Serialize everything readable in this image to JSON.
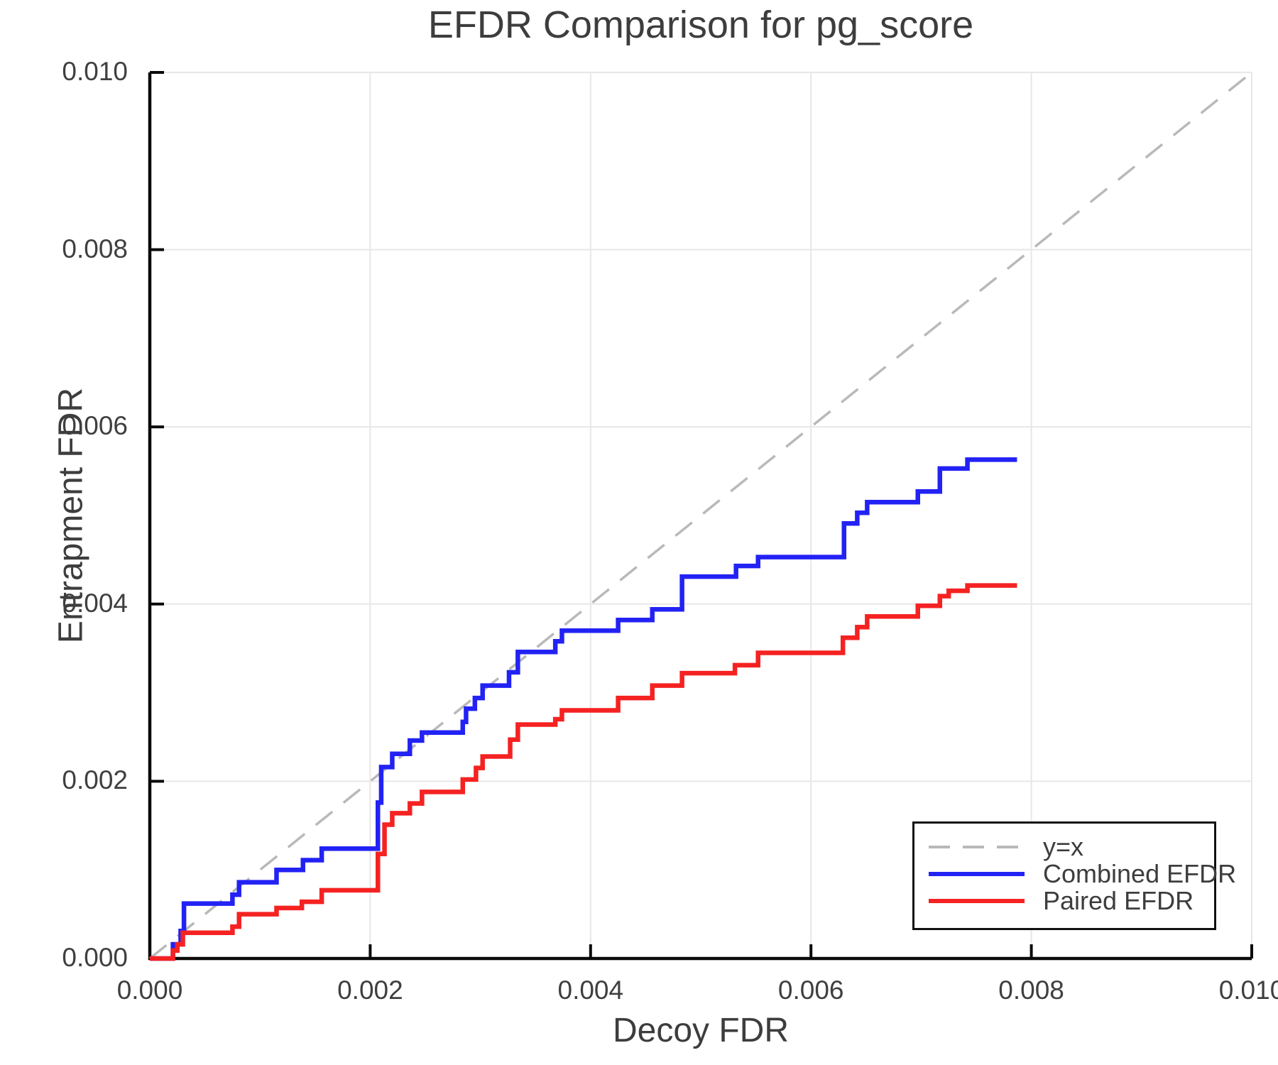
{
  "figure": {
    "background": "#ffffff",
    "text_color": "#3d3d3d",
    "axis_color": "#0a0a0a"
  },
  "chart_data": {
    "type": "line",
    "subtype": "step-post",
    "title": "EFDR Comparison for pg_score",
    "xlabel": "Decoy FDR",
    "ylabel": "Entrapment FDR",
    "xlim": [
      0.0,
      0.01
    ],
    "ylim": [
      0.0,
      0.01
    ],
    "x_ticks": [
      0.0,
      0.002,
      0.004,
      0.006,
      0.008,
      0.01
    ],
    "x_tick_labels": [
      "0.000",
      "0.002",
      "0.004",
      "0.006",
      "0.008",
      "0.010"
    ],
    "y_ticks": [
      0.0,
      0.002,
      0.004,
      0.006,
      0.008,
      0.01
    ],
    "y_tick_labels": [
      "0.000",
      "0.002",
      "0.004",
      "0.006",
      "0.008",
      "0.010"
    ],
    "grid": true,
    "grid_color": "#e7e7e7",
    "legend_position": "lower right",
    "series": [
      {
        "name": "y=x",
        "color": "#b9b9b9",
        "style": "dashed",
        "step": false,
        "points": [
          [
            0.0,
            0.0
          ],
          [
            0.01,
            0.01
          ]
        ]
      },
      {
        "name": "Combined EFDR",
        "color": "#2222f5",
        "style": "solid",
        "step": true,
        "points": [
          [
            0.0,
            0.0
          ],
          [
            0.00021,
            0.00016
          ],
          [
            0.00028,
            0.00031
          ],
          [
            0.00031,
            0.00062
          ],
          [
            0.00075,
            0.00072
          ],
          [
            0.00081,
            0.00086
          ],
          [
            0.00115,
            0.001
          ],
          [
            0.00139,
            0.00111
          ],
          [
            0.00156,
            0.00124
          ],
          [
            0.00207,
            0.00176
          ],
          [
            0.0021,
            0.00216
          ],
          [
            0.0022,
            0.00231
          ],
          [
            0.00236,
            0.00246
          ],
          [
            0.00247,
            0.00255
          ],
          [
            0.00284,
            0.00267
          ],
          [
            0.00287,
            0.00282
          ],
          [
            0.00295,
            0.00294
          ],
          [
            0.00302,
            0.00308
          ],
          [
            0.00326,
            0.00323
          ],
          [
            0.00334,
            0.00346
          ],
          [
            0.00368,
            0.00358
          ],
          [
            0.00374,
            0.0037
          ],
          [
            0.00425,
            0.00382
          ],
          [
            0.00456,
            0.00394
          ],
          [
            0.00483,
            0.00431
          ],
          [
            0.00532,
            0.00443
          ],
          [
            0.00552,
            0.00453
          ],
          [
            0.0063,
            0.00491
          ],
          [
            0.00642,
            0.00503
          ],
          [
            0.00651,
            0.00515
          ],
          [
            0.00697,
            0.00527
          ],
          [
            0.00717,
            0.00553
          ],
          [
            0.00742,
            0.00563
          ],
          [
            0.00787,
            0.00563
          ]
        ]
      },
      {
        "name": "Paired EFDR",
        "color": "#f52222",
        "style": "solid",
        "step": true,
        "points": [
          [
            0.0,
            0.0
          ],
          [
            0.00021,
            9e-05
          ],
          [
            0.00025,
            0.00016
          ],
          [
            0.0003,
            0.00029
          ],
          [
            0.00075,
            0.00036
          ],
          [
            0.00081,
            0.0005
          ],
          [
            0.00115,
            0.00057
          ],
          [
            0.00138,
            0.00064
          ],
          [
            0.00156,
            0.00077
          ],
          [
            0.00207,
            0.00118
          ],
          [
            0.00213,
            0.00151
          ],
          [
            0.0022,
            0.00164
          ],
          [
            0.00236,
            0.00175
          ],
          [
            0.00247,
            0.00188
          ],
          [
            0.00284,
            0.00202
          ],
          [
            0.00296,
            0.00215
          ],
          [
            0.00302,
            0.00228
          ],
          [
            0.00327,
            0.00247
          ],
          [
            0.00334,
            0.00264
          ],
          [
            0.00368,
            0.0027
          ],
          [
            0.00374,
            0.0028
          ],
          [
            0.00425,
            0.00294
          ],
          [
            0.00456,
            0.00308
          ],
          [
            0.00483,
            0.00322
          ],
          [
            0.00531,
            0.00331
          ],
          [
            0.00552,
            0.00345
          ],
          [
            0.00629,
            0.00362
          ],
          [
            0.00642,
            0.00374
          ],
          [
            0.00651,
            0.00386
          ],
          [
            0.00697,
            0.00398
          ],
          [
            0.00717,
            0.00409
          ],
          [
            0.00725,
            0.00415
          ],
          [
            0.00742,
            0.00421
          ],
          [
            0.00787,
            0.00421
          ]
        ]
      }
    ]
  }
}
